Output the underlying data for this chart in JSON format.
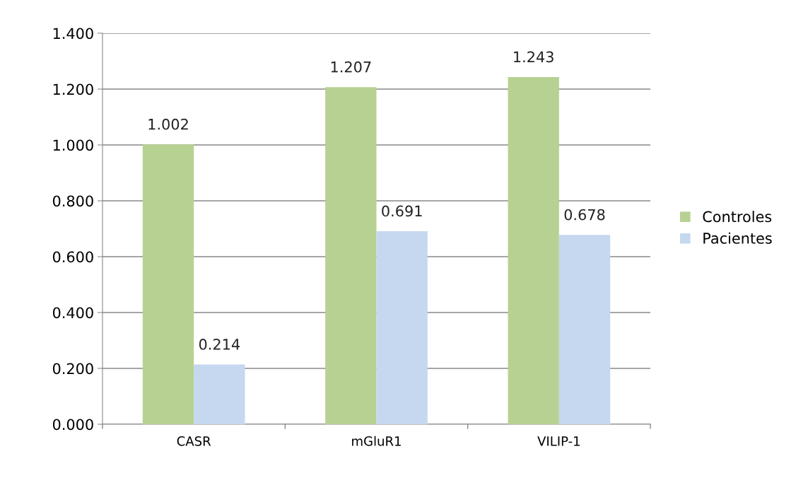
{
  "chart_data": {
    "type": "bar",
    "categories": [
      "CASR",
      "mGluR1",
      "VILIP-1"
    ],
    "series": [
      {
        "name": "Controles",
        "color": "#b7d192",
        "values": [
          1.002,
          1.207,
          1.243
        ],
        "value_labels": [
          "1.002",
          "1.207",
          "1.243"
        ]
      },
      {
        "name": "Pacientes",
        "color": "#c6d8f0",
        "values": [
          0.214,
          0.691,
          0.678
        ],
        "value_labels": [
          "0.214",
          "0.691",
          "0.678"
        ]
      }
    ],
    "ylim": [
      0,
      1.4
    ],
    "yticks": [
      {
        "value": 0,
        "label": "0.000"
      },
      {
        "value": 0.2,
        "label": "0.200"
      },
      {
        "value": 0.4,
        "label": "0.400"
      },
      {
        "value": 0.6,
        "label": "0.600"
      },
      {
        "value": 0.8,
        "label": "0.800"
      },
      {
        "value": 1.0,
        "label": "1.000"
      },
      {
        "value": 1.2,
        "label": "1.200"
      },
      {
        "value": 1.4,
        "label": "1.400"
      }
    ],
    "grid": "y",
    "legend": "right"
  }
}
